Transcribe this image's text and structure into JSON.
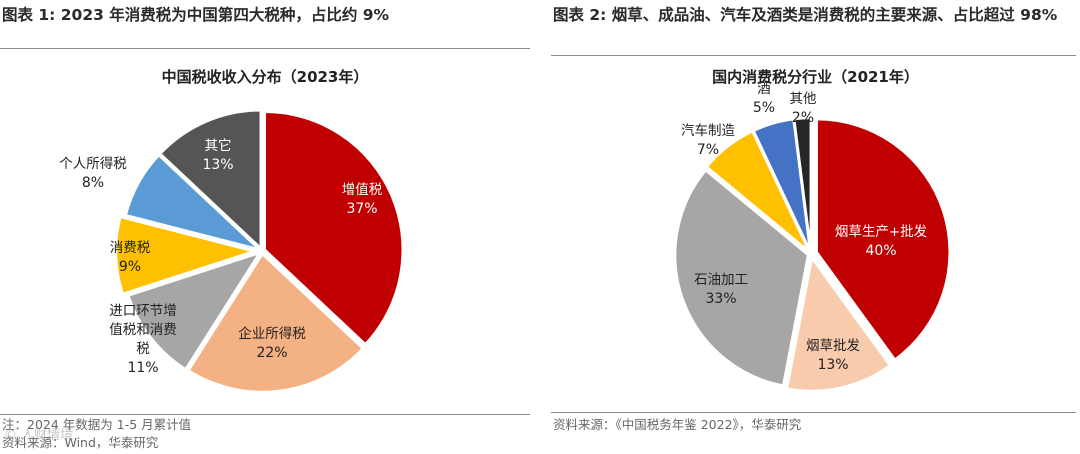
{
  "left_panel": {
    "figure_title": "图表 1:   2023 年消费税为中国第四大税种，占比约 9%",
    "note": "注：2024 年数据为 1-5 月累计值",
    "source": "资料来源：Wind，华泰研究"
  },
  "right_panel": {
    "figure_title": "图表 2:   烟草、成品油、汽车及酒类是消费税的主要来源、占比超过 98%",
    "source": "资料来源：《中国税务年鉴 2022》，华泰研究"
  },
  "watermark": "© 人财情境",
  "colors": {
    "red": "#C00000",
    "salmon": "#F4B183",
    "gray": "#A6A6A6",
    "yellow": "#FFC000",
    "blue": "#5B9BD5",
    "dark": "#555555",
    "peach": "#F8CBAD",
    "royal": "#4472C4",
    "black": "#262626"
  },
  "chart_data": [
    {
      "type": "pie",
      "title": "中国税收收入分布（2023年）",
      "slices": [
        {
          "label": "增值税",
          "value": 37,
          "display": "37%",
          "color": "#C00000"
        },
        {
          "label": "企业所得税",
          "value": 22,
          "display": "22%",
          "color": "#F4B183"
        },
        {
          "label": "进口环节增值税和消费税",
          "value": 11,
          "display": "11%",
          "color": "#A6A6A6"
        },
        {
          "label": "消费税",
          "value": 9,
          "display": "9%",
          "color": "#FFC000"
        },
        {
          "label": "个人所得税",
          "value": 8,
          "display": "8%",
          "color": "#5B9BD5"
        },
        {
          "label": "其它",
          "value": 13,
          "display": "13%",
          "color": "#555555"
        }
      ]
    },
    {
      "type": "pie",
      "title": "国内消费税分行业（2021年）",
      "slices": [
        {
          "label": "烟草生产+批发",
          "value": 40,
          "display": "40%",
          "color": "#C00000"
        },
        {
          "label": "烟草批发",
          "value": 13,
          "display": "13%",
          "color": "#F8CBAD"
        },
        {
          "label": "石油加工",
          "value": 33,
          "display": "33%",
          "color": "#A6A6A6"
        },
        {
          "label": "汽车制造",
          "value": 7,
          "display": "7%",
          "color": "#FFC000"
        },
        {
          "label": "酒",
          "value": 5,
          "display": "5%",
          "color": "#4472C4"
        },
        {
          "label": "其他",
          "value": 2,
          "display": "2%",
          "color": "#262626"
        }
      ]
    }
  ]
}
